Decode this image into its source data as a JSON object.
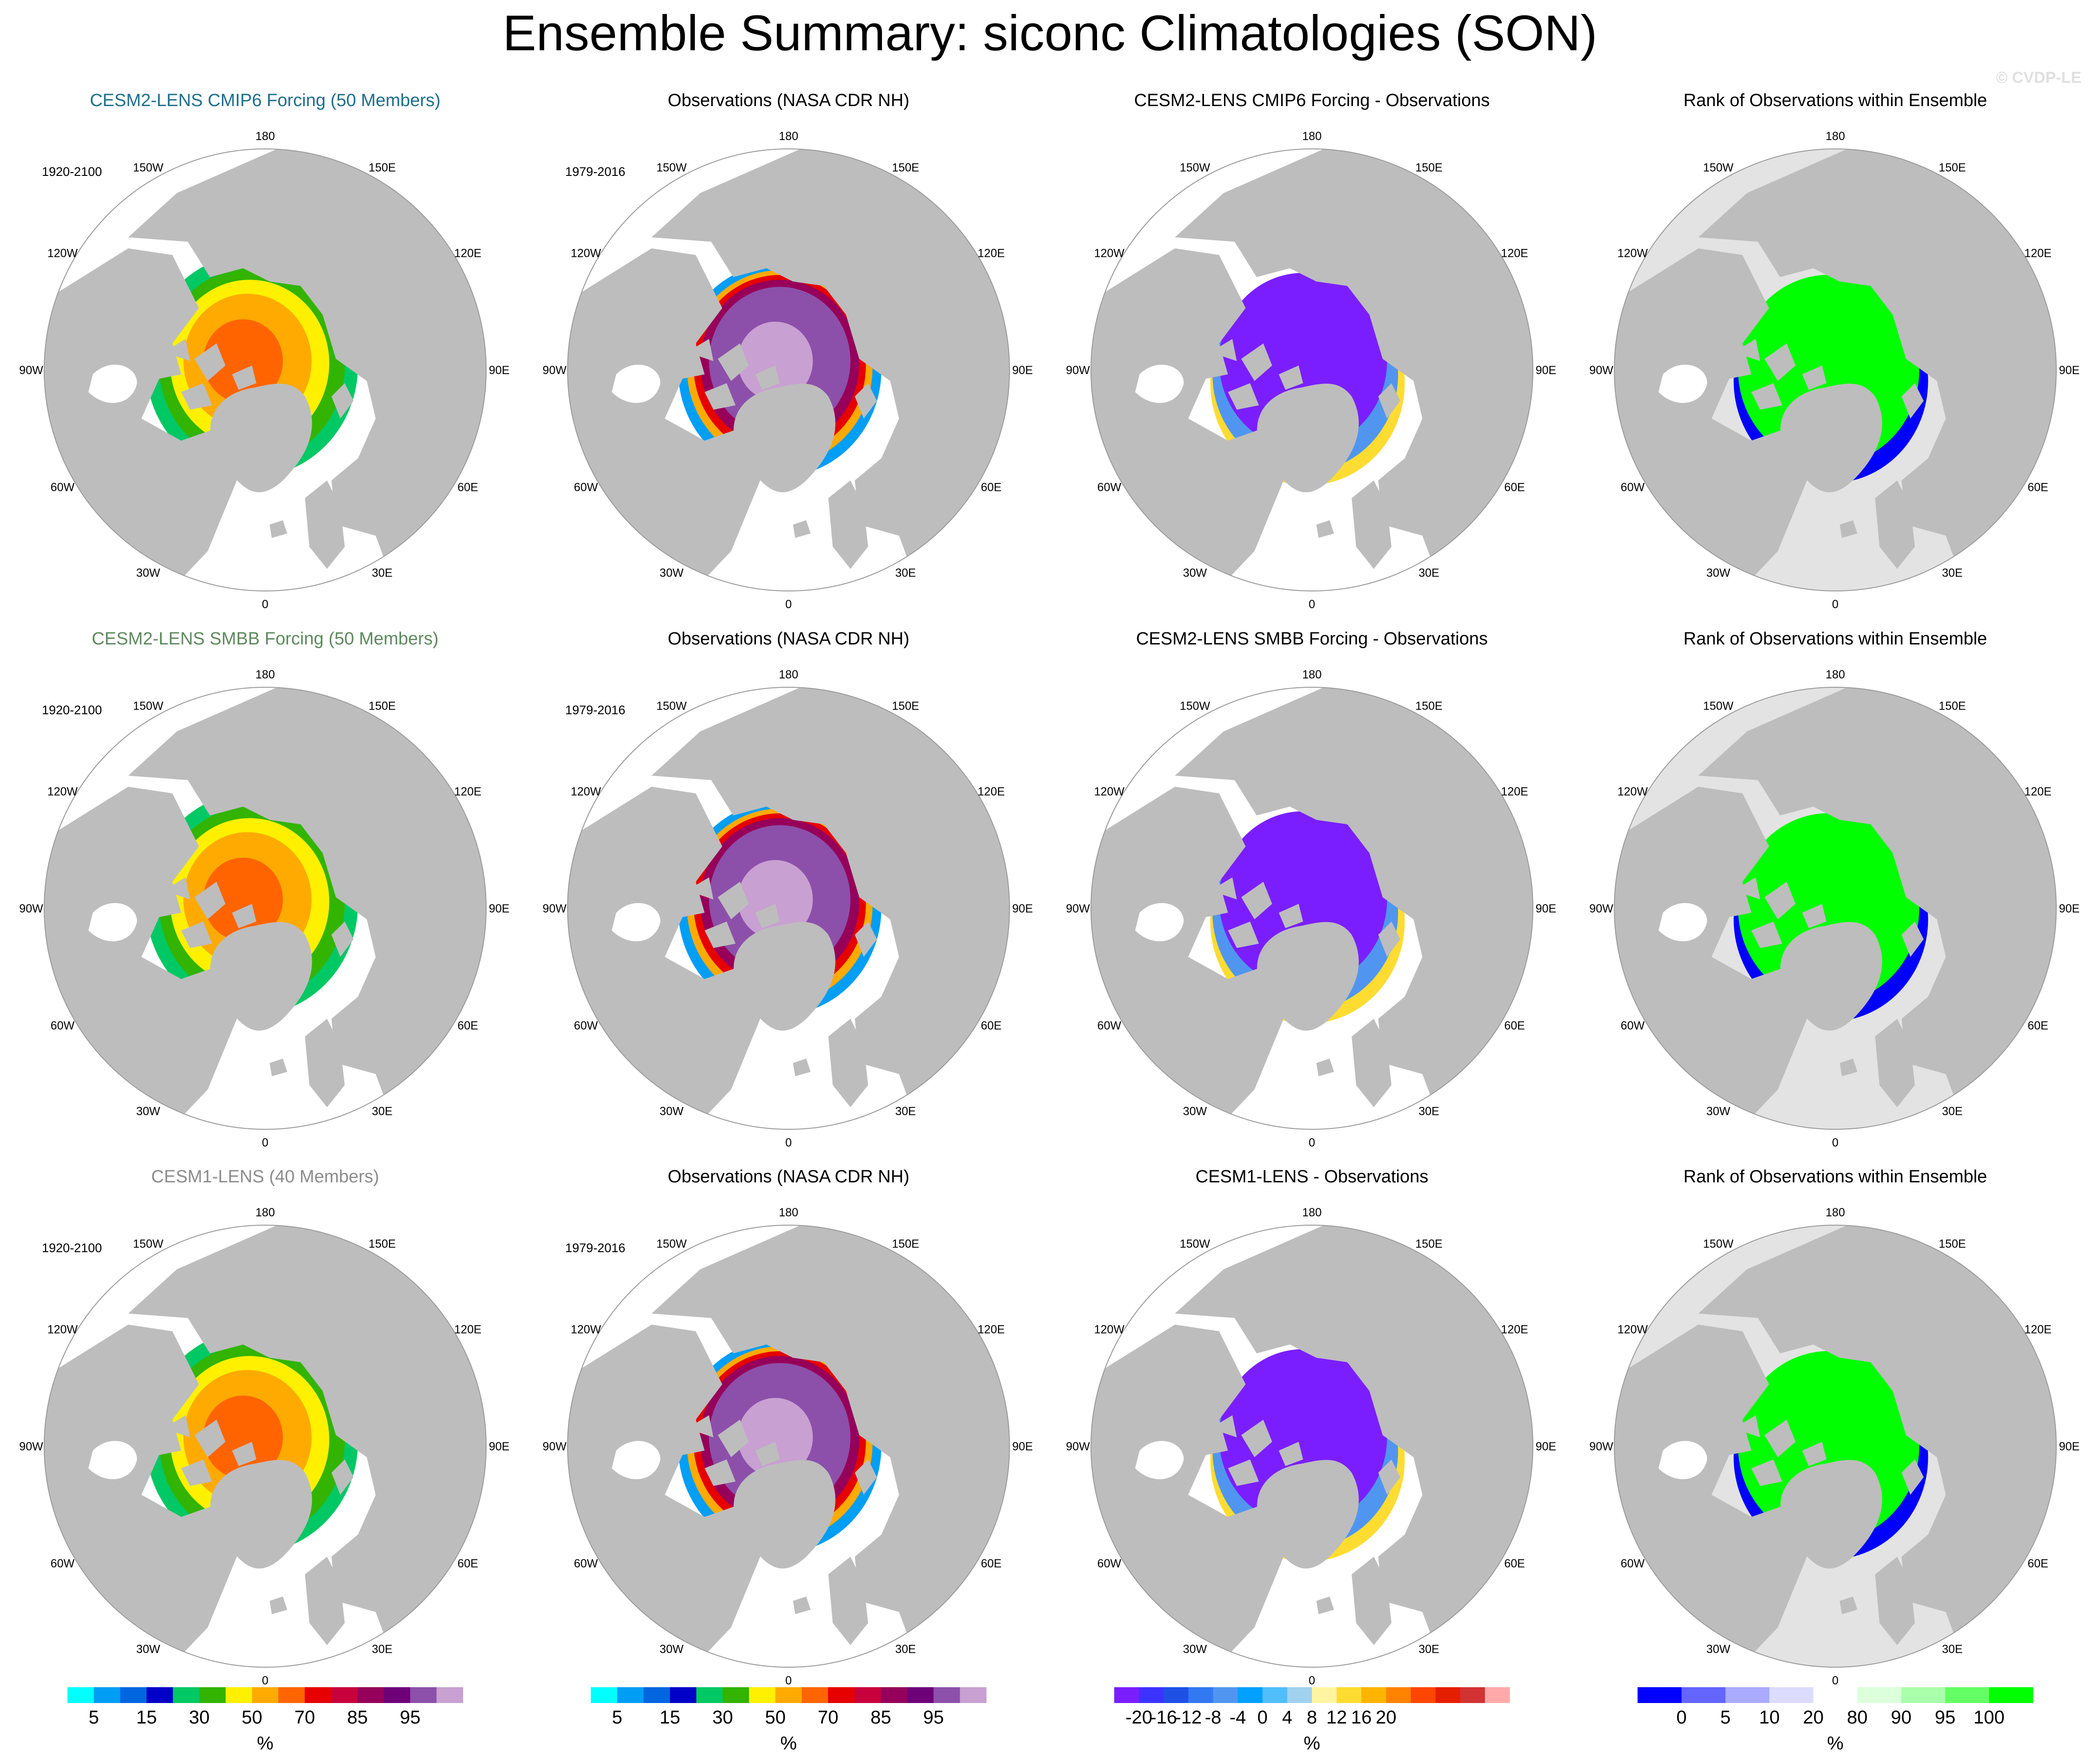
{
  "title": "Ensemble Summary: siconc Climatologies (SON)",
  "watermark": "© CVDP-LE",
  "lon_labels": [
    "180",
    "150E",
    "120E",
    "90E",
    "60E",
    "30E",
    "0",
    "30W",
    "60W",
    "90W",
    "120W",
    "150W"
  ],
  "colors": {
    "land": "#bdbdbd",
    "ocean": "#ffffff",
    "grid": "#c8c8c8",
    "rank_land_bg": "#e3e3e3"
  },
  "chart_data": {
    "type": "heatmap",
    "projection": "north polar stereographic",
    "variable": "siconc",
    "season": "SON",
    "rows": [
      {
        "panels": [
          {
            "kind": "ensemble",
            "title": "CESM2-LENS CMIP6 Forcing (50 Members)",
            "title_color": "#1f6e8c",
            "period": "1920-2100"
          },
          {
            "kind": "obs",
            "title": "Observations (NASA CDR NH)",
            "title_color": "#000000",
            "period": "1979-2016"
          },
          {
            "kind": "diff",
            "title": "CESM2-LENS CMIP6 Forcing - Observations",
            "title_color": "#000000",
            "period": ""
          },
          {
            "kind": "rank",
            "title": "Rank of Observations within Ensemble",
            "title_color": "#000000",
            "period": ""
          }
        ]
      },
      {
        "panels": [
          {
            "kind": "ensemble",
            "title": "CESM2-LENS SMBB Forcing (50 Members)",
            "title_color": "#5d8a5d",
            "period": "1920-2100"
          },
          {
            "kind": "obs",
            "title": "Observations (NASA CDR NH)",
            "title_color": "#000000",
            "period": "1979-2016"
          },
          {
            "kind": "diff",
            "title": "CESM2-LENS SMBB Forcing - Observations",
            "title_color": "#000000",
            "period": ""
          },
          {
            "kind": "rank",
            "title": "Rank of Observations within Ensemble",
            "title_color": "#000000",
            "period": ""
          }
        ]
      },
      {
        "panels": [
          {
            "kind": "ensemble",
            "title": "CESM1-LENS (40 Members)",
            "title_color": "#8c8c8c",
            "period": "1920-2100"
          },
          {
            "kind": "obs",
            "title": "Observations (NASA CDR NH)",
            "title_color": "#000000",
            "period": "1979-2016"
          },
          {
            "kind": "diff",
            "title": "CESM1-LENS - Observations",
            "title_color": "#000000",
            "period": ""
          },
          {
            "kind": "rank",
            "title": "Rank of Observations within Ensemble",
            "title_color": "#000000",
            "period": ""
          }
        ]
      }
    ],
    "colorbars": [
      {
        "units": "%",
        "colors": [
          "#00ffff",
          "#009ef5",
          "#0066e0",
          "#0000c8",
          "#00c864",
          "#32b400",
          "#fff000",
          "#ffaa00",
          "#ff6400",
          "#e60000",
          "#c8003c",
          "#96005a",
          "#6e0078",
          "#8c50aa",
          "#c8a0d2"
        ],
        "ticks": [
          "5",
          "15",
          "30",
          "50",
          "70",
          "85",
          "95"
        ],
        "tick_boundaries": [
          1,
          3,
          5,
          7,
          9,
          11,
          13
        ]
      },
      {
        "units": "%",
        "colors": [
          "#00ffff",
          "#009ef5",
          "#0066e0",
          "#0000c8",
          "#00c864",
          "#32b400",
          "#fff000",
          "#ffaa00",
          "#ff6400",
          "#e60000",
          "#c8003c",
          "#96005a",
          "#6e0078",
          "#8c50aa",
          "#c8a0d2"
        ],
        "ticks": [
          "5",
          "15",
          "30",
          "50",
          "70",
          "85",
          "95"
        ],
        "tick_boundaries": [
          1,
          3,
          5,
          7,
          9,
          11,
          13
        ]
      },
      {
        "units": "%",
        "colors": [
          "#7a1eff",
          "#3c32ff",
          "#1e50e6",
          "#3278f0",
          "#5096f0",
          "#00a0ff",
          "#50befa",
          "#a0d2f0",
          "#fff5a0",
          "#ffdc32",
          "#ffb400",
          "#ff8200",
          "#ff4600",
          "#e61e00",
          "#d23232",
          "#ffaaaa"
        ],
        "ticks": [
          "-20",
          "-16",
          "-12",
          "-8",
          "-4",
          "0",
          "4",
          "8",
          "12",
          "16",
          "20"
        ],
        "tick_boundaries": [
          1,
          2,
          3,
          4,
          5,
          6,
          7,
          8,
          9,
          10,
          11
        ]
      },
      {
        "units": "%",
        "colors": [
          "#0000ff",
          "#6464ff",
          "#aaaaff",
          "#dcdcff",
          "#ffffff",
          "#dcffdc",
          "#aaffaa",
          "#64ff64",
          "#00ff00"
        ],
        "ticks": [
          "0",
          "5",
          "10",
          "20",
          "80",
          "90",
          "95",
          "100"
        ],
        "tick_boundaries": [
          1,
          2,
          3,
          4,
          5,
          6,
          7,
          8
        ]
      }
    ],
    "field_summary": {
      "ensemble_mean": "central Arctic 70-95% (orange/yellow), decreasing to 5-30% at ice edge",
      "observations": "central Arctic 95-100% (purple), red/orange ring, cyan/blue at edge",
      "difference": "about -20% (purple) over central Arctic, positive up to +20% near Barents/Kara edge",
      "rank": "100% (green) over most of ice pack, 0-5% (blue) in Baffin/Barents margins"
    }
  }
}
